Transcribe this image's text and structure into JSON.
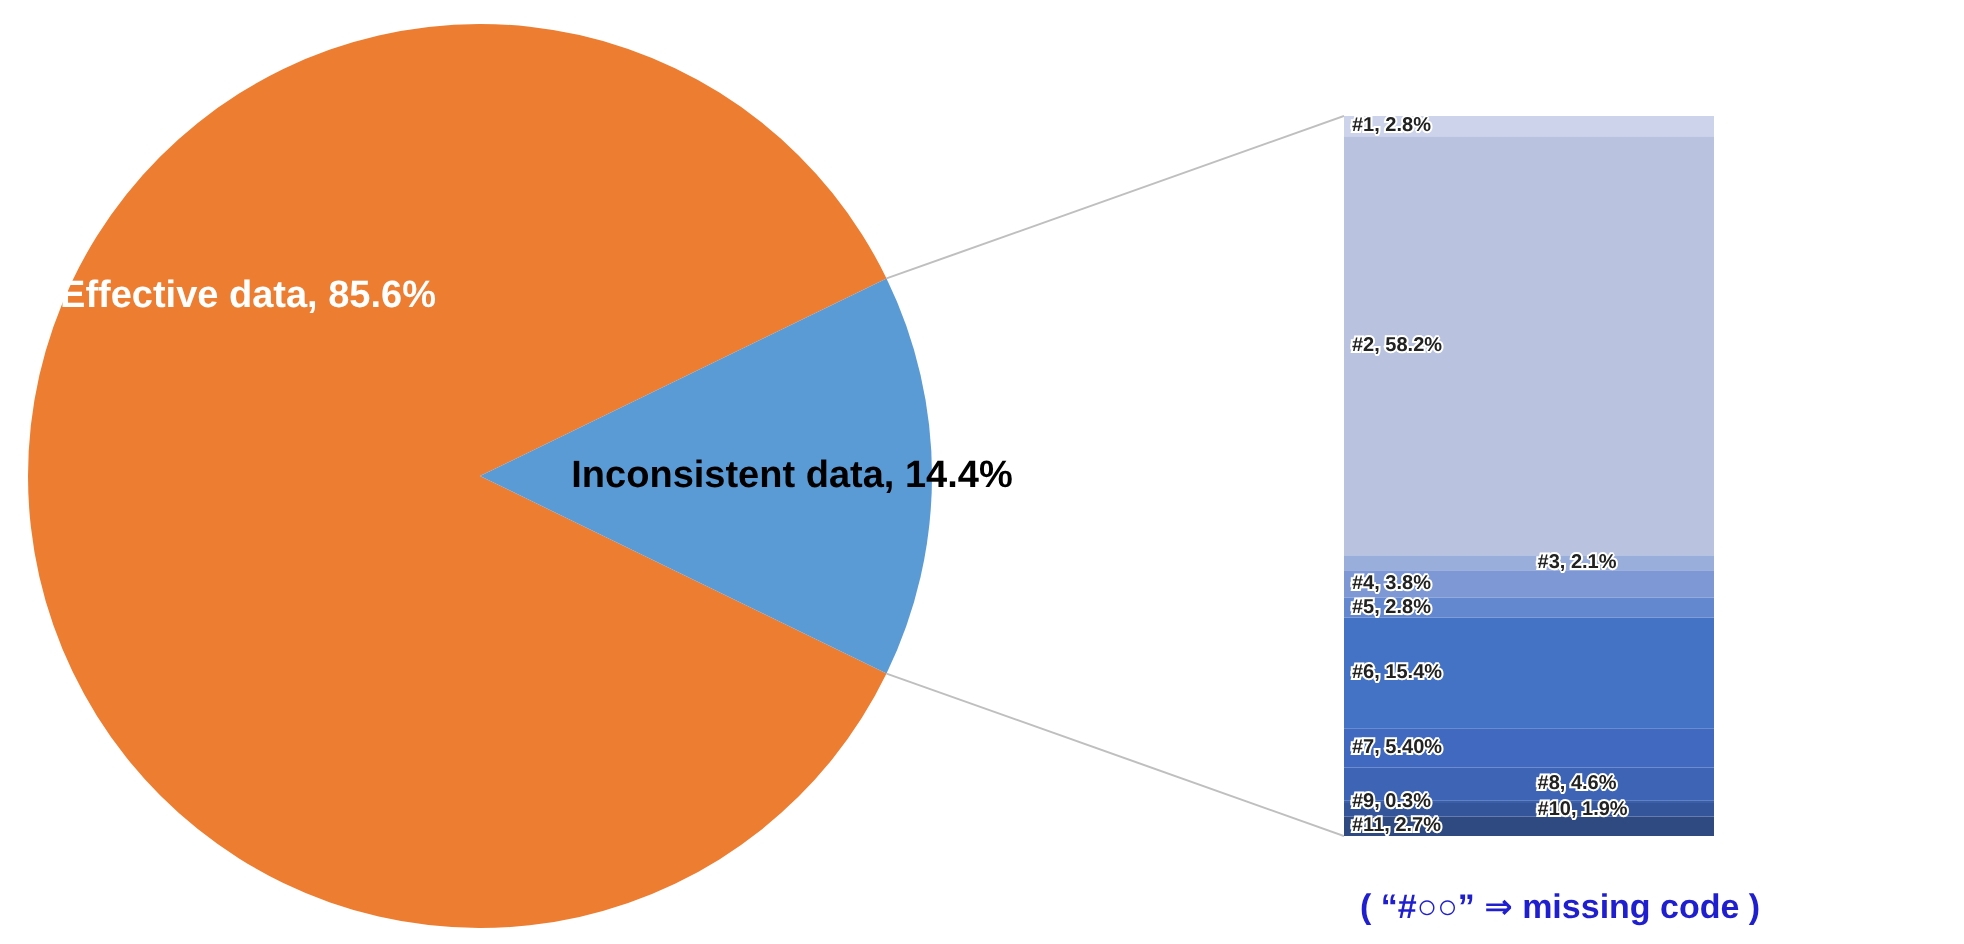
{
  "chart_data": [
    {
      "type": "pie",
      "categories": [
        "Effective data",
        "Inconsistent data"
      ],
      "values": [
        85.6,
        14.4
      ],
      "value_labels": [
        "85.6%",
        "14.4%"
      ],
      "colors": [
        "#ed7d31",
        "#5b9bd5"
      ]
    },
    {
      "type": "bar",
      "stacked": true,
      "categories": [
        null
      ],
      "annotations": [
        "( “#○○” ⇒ missing code )"
      ],
      "series": [
        {
          "name": "#11,",
          "color": "#2e4a80",
          "values": [
            2.7
          ],
          "value_labels": [
            "2.7%"
          ]
        },
        {
          "name": "#10,",
          "color": "#34559a",
          "values": [
            1.9
          ],
          "value_labels": [
            "1.9%"
          ]
        },
        {
          "name": "#9,",
          "color": "#3a5fa8",
          "values": [
            0.3
          ],
          "value_labels": [
            "0.3%"
          ]
        },
        {
          "name": "#8,",
          "color": "#3d64b5",
          "values": [
            4.6
          ],
          "value_labels": [
            "4.6%"
          ]
        },
        {
          "name": "#7,",
          "color": "#4169c0",
          "values": [
            5.4
          ],
          "value_labels": [
            "5.40%"
          ]
        },
        {
          "name": "#6,",
          "color": "#4472c4",
          "values": [
            15.4
          ],
          "value_labels": [
            "15.4%"
          ]
        },
        {
          "name": "#5,",
          "color": "#6488cf",
          "values": [
            2.8
          ],
          "value_labels": [
            "2.8%"
          ]
        },
        {
          "name": "#4,",
          "color": "#7d98d4",
          "values": [
            3.8
          ],
          "value_labels": [
            "3.8%"
          ]
        },
        {
          "name": "#3,",
          "color": "#9aaedc",
          "values": [
            2.1
          ],
          "value_labels": [
            "2.1%"
          ]
        },
        {
          "name": "#2,",
          "color": "#b9c3e0",
          "values": [
            58.2
          ],
          "value_labels": [
            "58.2%"
          ]
        },
        {
          "name": "#1,",
          "color": "#ccd3ea",
          "values": [
            2.8
          ],
          "value_labels": [
            "2.8%"
          ]
        }
      ]
    }
  ]
}
